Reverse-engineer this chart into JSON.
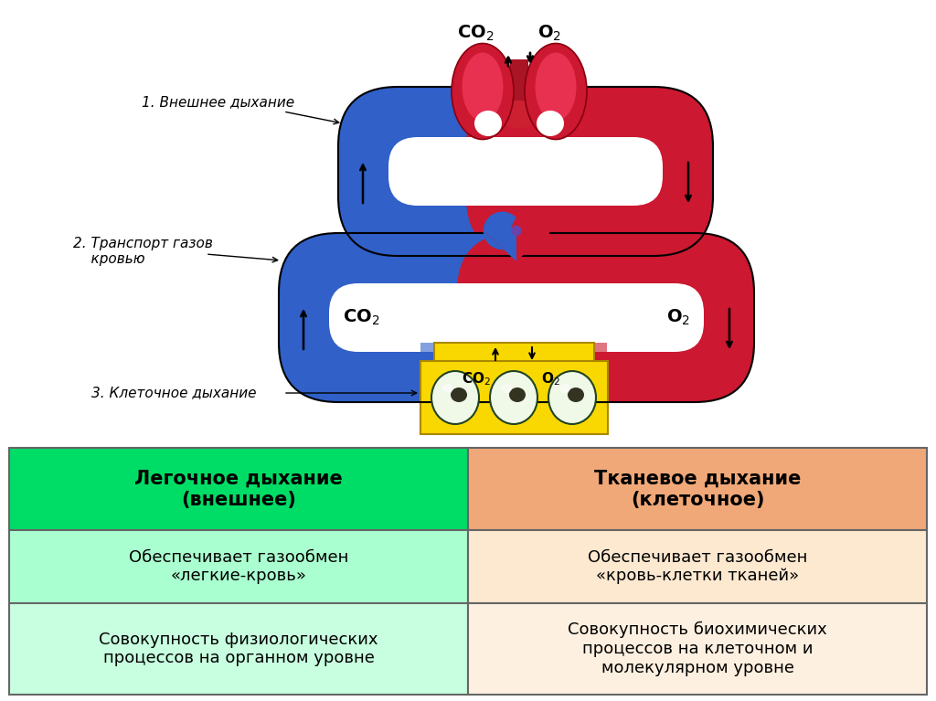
{
  "bg_color": "#ffffff",
  "label1": "1. Внешнее дыхание",
  "label2": "2. Транспорт газов\n    кровью",
  "label3": "3. Клеточное дыхание",
  "table_header_left": "Легочное дыхание\n(внешнее)",
  "table_header_right": "Тканевое дыхание\n(клеточное)",
  "table_row1_left": "Обеспечивает газообмен\n«легкие-кровь»",
  "table_row1_right": "Обеспечивает газообмен\n«кровь-клетки тканей»",
  "table_row2_left": "Совокупность физиологических\nпроцессов на органном уровне",
  "table_row2_right": "Совокупность биохимических\nпроцессов на клеточном и\nмолекулярном уровне",
  "header_left_color": "#00dd66",
  "header_right_color": "#f0a878",
  "row1_left_color": "#aaffd0",
  "row1_right_color": "#fde8d0",
  "row2_left_color": "#c8ffe0",
  "row2_right_color": "#fef0e0",
  "blue_color": "#3060c8",
  "red_color": "#cc1830",
  "yellow_color": "#f8d800",
  "dark_color": "#111111"
}
